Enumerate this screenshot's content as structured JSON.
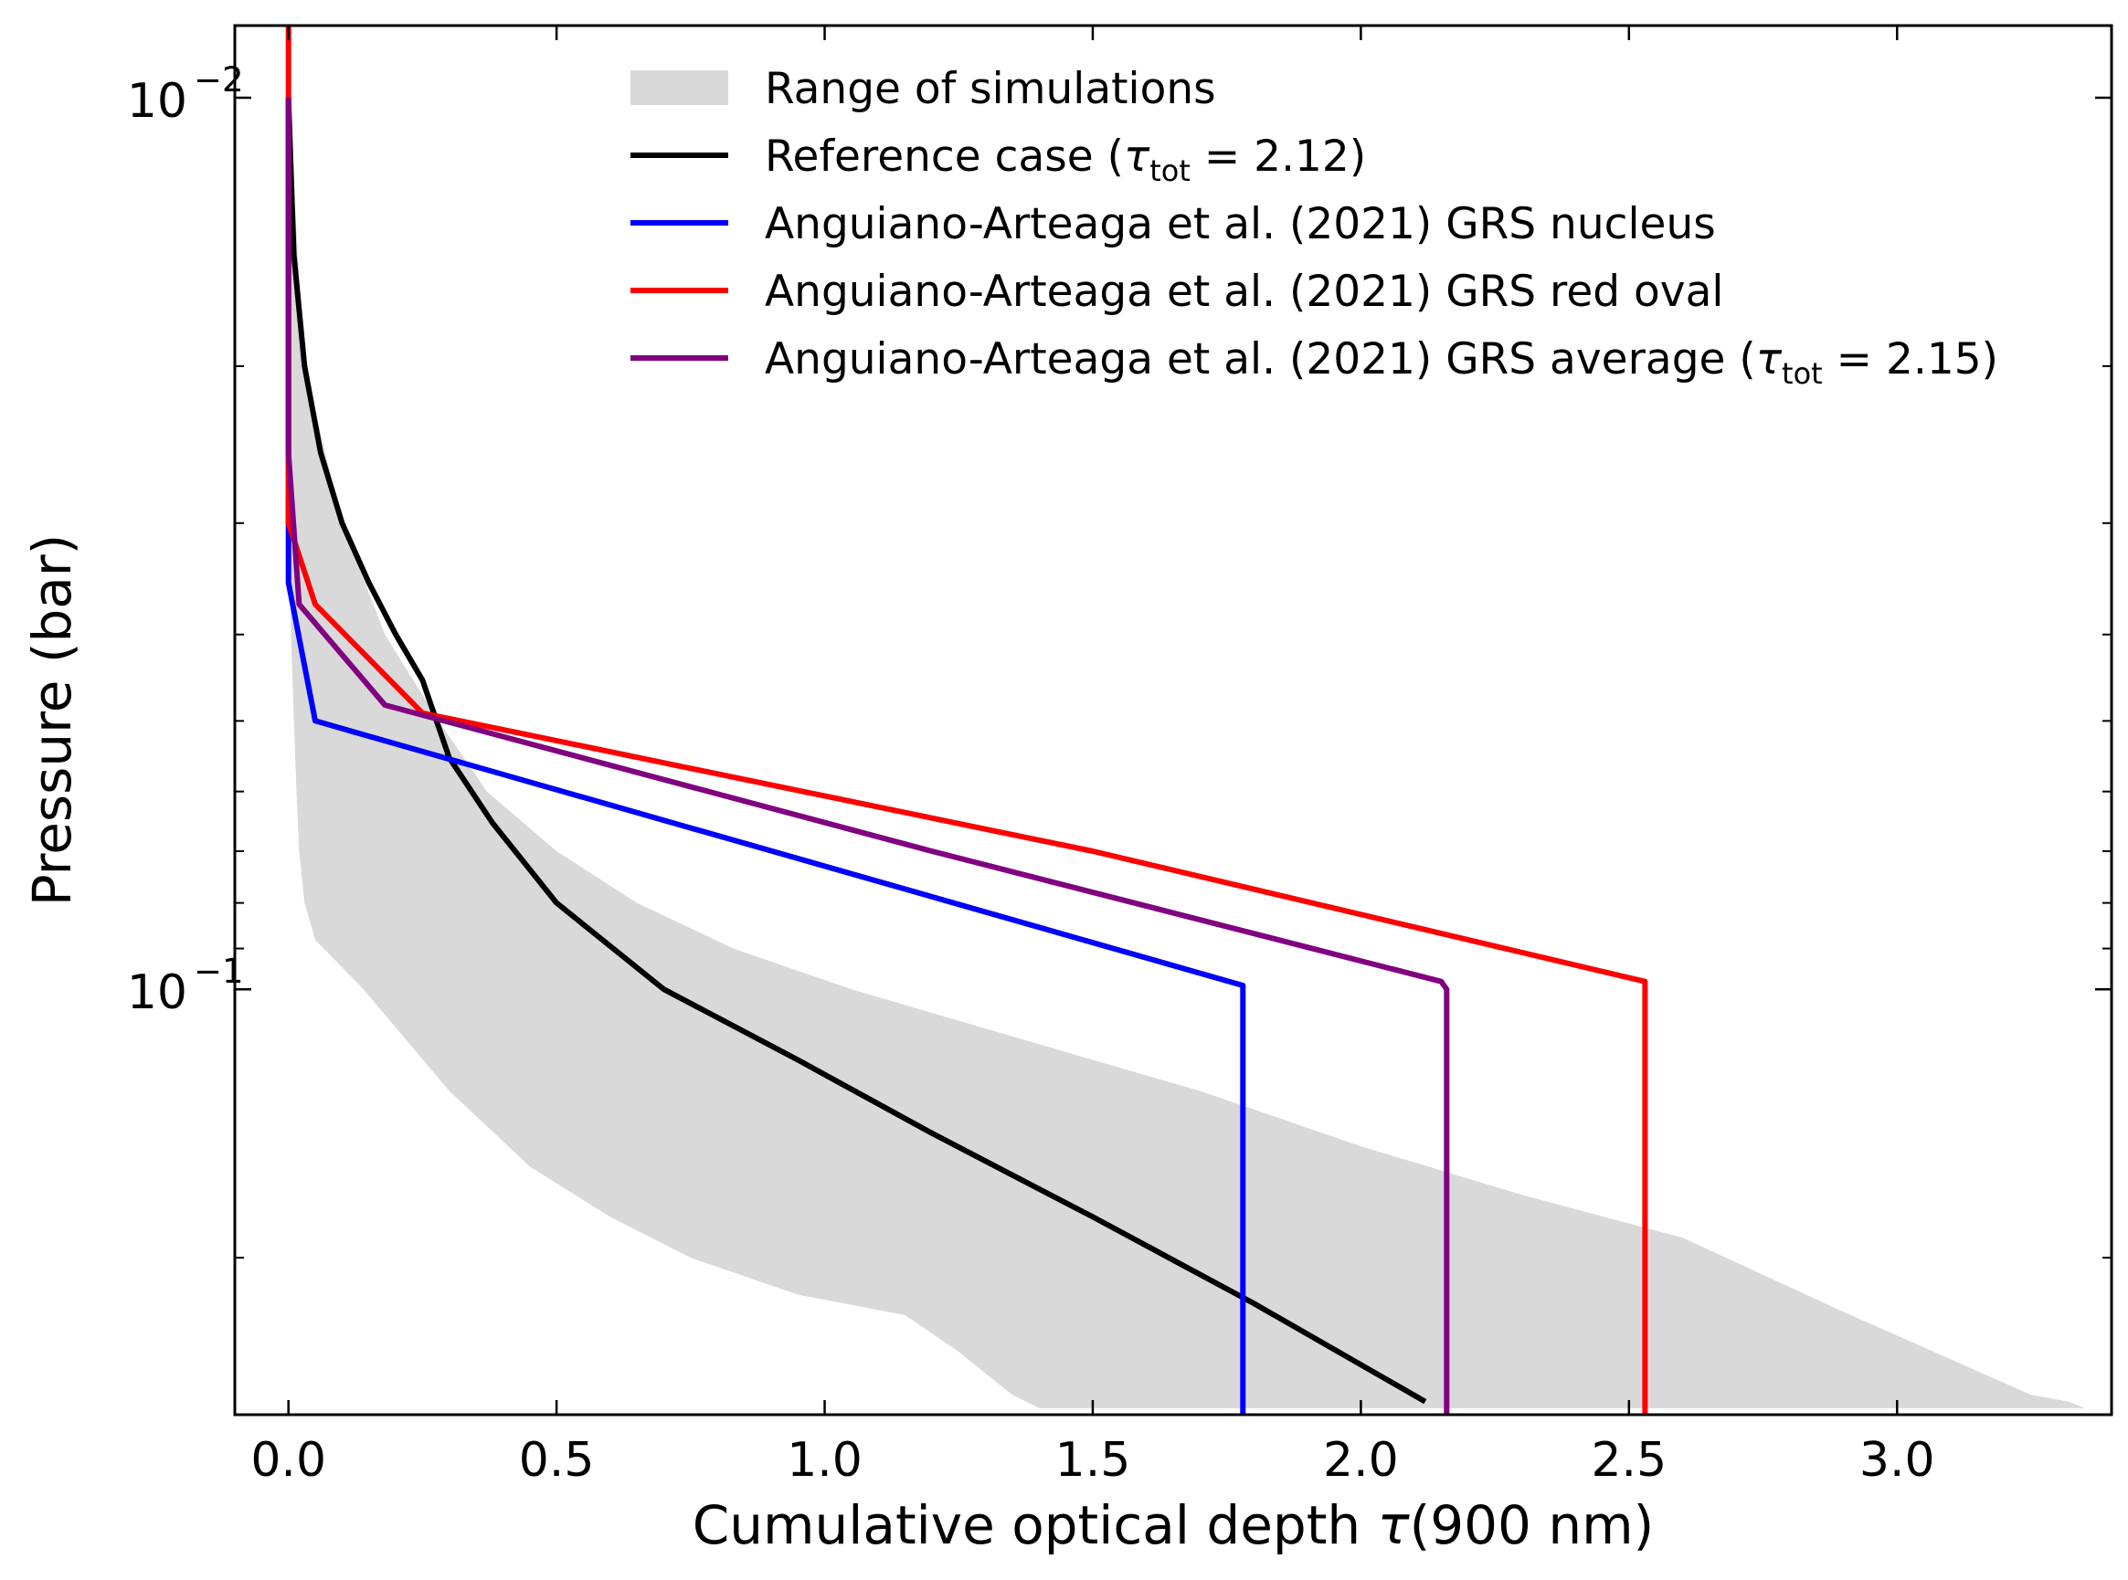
{
  "chart_data": {
    "type": "line",
    "xlabel_prefix": "Cumulative optical depth ",
    "xlabel_symbol": "τ",
    "xlabel_suffix": "(900 nm)",
    "ylabel": "Pressure (bar)",
    "xlim": [
      -0.1,
      3.4
    ],
    "ylim": [
      0.0083,
      0.3
    ],
    "y_scale": "log",
    "x_ticks": [
      0.0,
      0.5,
      1.0,
      1.5,
      2.0,
      2.5,
      3.0
    ],
    "x_tick_labels": [
      "0.0",
      "0.5",
      "1.0",
      "1.5",
      "2.0",
      "2.5",
      "3.0"
    ],
    "y_major_ticks": [
      {
        "value": 0.01,
        "base": "10",
        "exp": "−2"
      },
      {
        "value": 0.1,
        "base": "10",
        "exp": "−1"
      }
    ],
    "y_minor_ticks": [
      0.02,
      0.03,
      0.04,
      0.05,
      0.06,
      0.07,
      0.08,
      0.09,
      0.2,
      0.3
    ],
    "grid": false,
    "legend_position": "top-right",
    "band": {
      "name": "Range of simulations",
      "color": "#d9d9d9",
      "right": [
        [
          0.0,
          0.01
        ],
        [
          0.03,
          0.02
        ],
        [
          0.1,
          0.03
        ],
        [
          0.18,
          0.04
        ],
        [
          0.28,
          0.05
        ],
        [
          0.37,
          0.06
        ],
        [
          0.5,
          0.07
        ],
        [
          0.65,
          0.08
        ],
        [
          0.83,
          0.09
        ],
        [
          1.05,
          0.1
        ],
        [
          1.5,
          0.12
        ],
        [
          1.7,
          0.13
        ],
        [
          2.0,
          0.15
        ],
        [
          2.3,
          0.17
        ],
        [
          2.6,
          0.19
        ],
        [
          2.9,
          0.23
        ],
        [
          3.1,
          0.26
        ],
        [
          3.25,
          0.285
        ],
        [
          3.32,
          0.29
        ],
        [
          3.35,
          0.295
        ]
      ],
      "left": [
        [
          1.4,
          0.295
        ],
        [
          1.35,
          0.285
        ],
        [
          1.25,
          0.255
        ],
        [
          1.15,
          0.232
        ],
        [
          0.95,
          0.22
        ],
        [
          0.75,
          0.2
        ],
        [
          0.6,
          0.18
        ],
        [
          0.45,
          0.158
        ],
        [
          0.3,
          0.13
        ],
        [
          0.14,
          0.1
        ],
        [
          0.05,
          0.088
        ],
        [
          0.03,
          0.08
        ],
        [
          0.02,
          0.07
        ],
        [
          0.015,
          0.06
        ],
        [
          0.01,
          0.05
        ],
        [
          0.005,
          0.04
        ],
        [
          0.0,
          0.03
        ],
        [
          0.0,
          0.01
        ]
      ]
    },
    "series": [
      {
        "name_prefix": "Reference case (",
        "name_tau": "τ",
        "name_sub": "tot",
        "name_suffix": " = 2.12)",
        "color": "#000000",
        "points": [
          [
            0.0,
            0.01
          ],
          [
            0.01,
            0.015
          ],
          [
            0.03,
            0.02
          ],
          [
            0.06,
            0.025
          ],
          [
            0.1,
            0.03
          ],
          [
            0.15,
            0.035
          ],
          [
            0.2,
            0.04
          ],
          [
            0.25,
            0.045
          ],
          [
            0.3,
            0.055
          ],
          [
            0.38,
            0.065
          ],
          [
            0.5,
            0.08
          ],
          [
            0.7,
            0.1
          ],
          [
            0.95,
            0.12
          ],
          [
            1.2,
            0.145
          ],
          [
            1.5,
            0.18
          ],
          [
            1.8,
            0.225
          ],
          [
            2.12,
            0.29
          ]
        ]
      },
      {
        "name_prefix": "Anguiano-Arteaga et al. (2021) GRS nucleus",
        "color": "#0000ff",
        "points": [
          [
            0.0,
            0.01
          ],
          [
            0.0,
            0.035
          ],
          [
            0.05,
            0.05
          ],
          [
            1.78,
            0.099
          ],
          [
            1.78,
            0.3
          ]
        ]
      },
      {
        "name_prefix": "Anguiano-Arteaga et al. (2021) GRS red oval",
        "color": "#ff0000",
        "points": [
          [
            0.0,
            0.0083
          ],
          [
            0.0,
            0.03
          ],
          [
            0.05,
            0.037
          ],
          [
            0.25,
            0.049
          ],
          [
            1.5,
            0.07
          ],
          [
            2.53,
            0.098
          ],
          [
            2.53,
            0.3
          ]
        ]
      },
      {
        "name_prefix": "Anguiano-Arteaga et al. (2021) GRS average (",
        "name_tau": "τ",
        "name_sub": "tot",
        "name_suffix": " = 2.15)",
        "color": "#800080",
        "points": [
          [
            0.0,
            0.01
          ],
          [
            0.0,
            0.025
          ],
          [
            0.02,
            0.037
          ],
          [
            0.18,
            0.048
          ],
          [
            1.2,
            0.07
          ],
          [
            2.15,
            0.098
          ],
          [
            2.16,
            0.1
          ],
          [
            2.16,
            0.3
          ]
        ]
      }
    ]
  }
}
